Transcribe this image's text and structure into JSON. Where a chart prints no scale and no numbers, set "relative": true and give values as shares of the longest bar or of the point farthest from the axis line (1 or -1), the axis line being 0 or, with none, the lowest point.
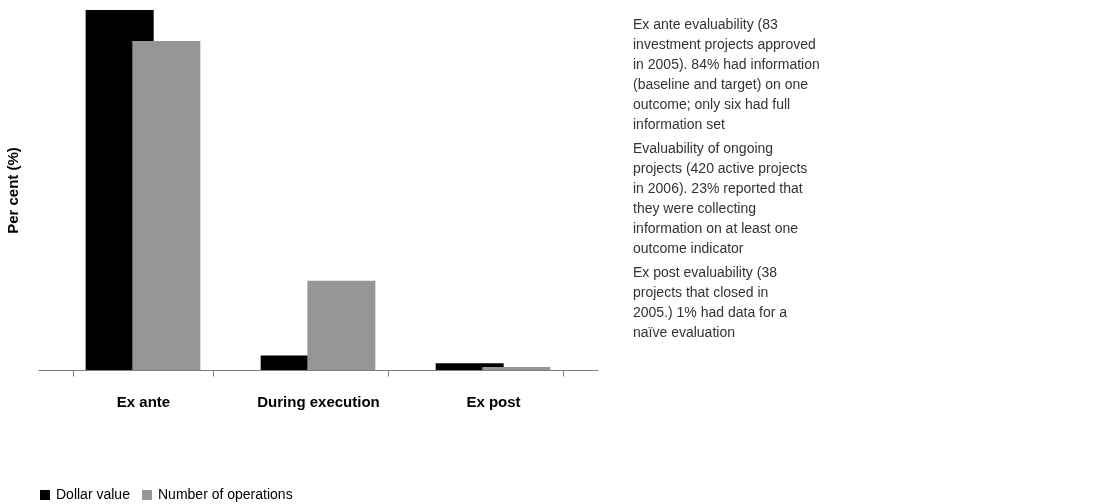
{
  "chart_data": {
    "type": "bar",
    "relative": true,
    "ylabel": "Per cent (%)",
    "categories": [
      "Ex ante",
      "During execution",
      "Ex post"
    ],
    "series": [
      {
        "name": "Dollar value",
        "color": "#000000",
        "values": [
          1,
          0.04,
          0.019
        ]
      },
      {
        "name": "Number of operations",
        "color": "#969696",
        "values": [
          0.914,
          0.248,
          0.008
        ]
      }
    ],
    "legend": "bottom",
    "grid": false,
    "annotations": [
      "Ex ante evaluability (83 investment projects approved in 2005). 84% had information (baseline and target) on one outcome; only six had full information set",
      "Evaluability of ongoing projects (420 active projects in 2006). 23% reported that they were collecting information on at least one outcome indicator",
      "Ex post evaluability (38 projects that closed in 2005.) 1% had data for a naïve evaluation"
    ]
  }
}
